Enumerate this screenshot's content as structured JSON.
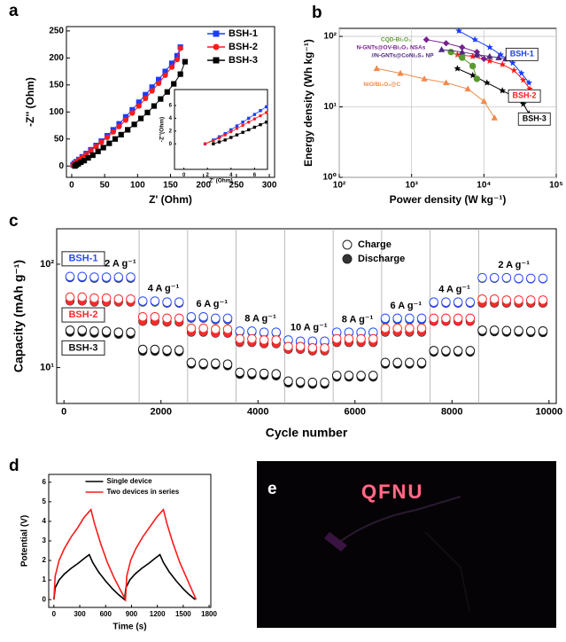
{
  "chart_data": [
    {
      "type": "line",
      "panel": "a",
      "xlabel": "Z' (Ohm)",
      "ylabel": "-Z'' (Ohm)",
      "xlim": [
        -8,
        308
      ],
      "ylim": [
        -21,
        258
      ],
      "xticks": [
        0,
        50,
        100,
        150,
        200,
        250,
        300
      ],
      "yticks": [
        0,
        50,
        100,
        150,
        200,
        250
      ],
      "legend": "upper right",
      "series": [
        {
          "name": "BSH-1",
          "color": "#1a3cff",
          "marker": "square",
          "x": [
            2,
            4,
            7,
            11,
            16,
            22,
            29,
            37,
            45,
            54,
            63,
            72,
            82,
            92,
            102,
            112,
            122,
            132,
            142,
            152,
            160,
            165
          ],
          "values": [
            2,
            5,
            8,
            12,
            17,
            23,
            30,
            38,
            46,
            56,
            67,
            78,
            91,
            104,
            118,
            132,
            146,
            160,
            175,
            190,
            204,
            220
          ]
        },
        {
          "name": "BSH-2",
          "color": "#ff1a1a",
          "marker": "circle",
          "x": [
            2,
            4,
            7,
            11,
            16,
            22,
            29,
            37,
            45,
            54,
            63,
            72,
            82,
            92,
            102,
            112,
            122,
            132,
            142,
            152,
            160,
            165
          ],
          "values": [
            1,
            4,
            7,
            11,
            16,
            21,
            28,
            36,
            44,
            53,
            63,
            73,
            85,
            98,
            111,
            125,
            139,
            153,
            168,
            183,
            197,
            218
          ]
        },
        {
          "name": "BSH-3",
          "color": "#000000",
          "marker": "square",
          "x": [
            5,
            7,
            10,
            14,
            19,
            25,
            32,
            40,
            48,
            57,
            66,
            75,
            85,
            95,
            105,
            115,
            125,
            135,
            145,
            155,
            165,
            172
          ],
          "values": [
            0,
            2,
            4,
            7,
            10,
            15,
            20,
            27,
            34,
            42,
            50,
            58,
            67,
            77,
            88,
            99,
            111,
            124,
            137,
            152,
            170,
            193
          ]
        }
      ],
      "inset": {
        "xlabel": "Z' (Ohm)",
        "ylabel": "-Z''(Ohm)",
        "xlim": [
          -0.8,
          7.1
        ],
        "ylim": [
          -4,
          8.5
        ],
        "xticks": [
          0,
          2,
          4,
          6
        ],
        "yticks": [
          0,
          2,
          4,
          6
        ],
        "series": [
          {
            "color": "#1a3cff",
            "marker": "square",
            "x": [
              1.8,
              2.5,
              3,
              3.5,
              4,
              4.5,
              5,
              5.5,
              6,
              6.5,
              7
            ],
            "values": [
              0,
              0.6,
              1.1,
              1.6,
              2.2,
              2.8,
              3.4,
              4.0,
              4.6,
              5.2,
              5.8
            ]
          },
          {
            "color": "#ff1a1a",
            "marker": "circle",
            "x": [
              1.8,
              2.5,
              3,
              3.5,
              4,
              4.5,
              5,
              5.5,
              6,
              6.5,
              7
            ],
            "values": [
              0,
              0.5,
              0.9,
              1.4,
              1.9,
              2.4,
              2.9,
              3.4,
              3.9,
              4.4,
              4.9
            ]
          },
          {
            "color": "#000000",
            "marker": "square",
            "x": [
              2.5,
              3,
              3.5,
              4,
              4.5,
              5,
              5.5,
              6,
              6.5,
              7
            ],
            "values": [
              0,
              0.3,
              0.6,
              1,
              1.4,
              1.8,
              2.2,
              2.6,
              3.0,
              3.4
            ]
          }
        ]
      }
    },
    {
      "type": "line",
      "panel": "b",
      "xlabel": "Power density (W kg⁻¹)",
      "ylabel": "Energy density (Wh kg⁻¹)",
      "xlog": true,
      "ylog": true,
      "grid": true,
      "xlim": [
        100,
        100000
      ],
      "ylim": [
        1,
        130
      ],
      "xticks": [
        {
          "value": 100,
          "label": "10²"
        },
        {
          "value": 1000,
          "label": "10³"
        },
        {
          "value": 10000,
          "label": "10⁴"
        },
        {
          "value": 100000,
          "label": "10⁵"
        }
      ],
      "yticks": [
        {
          "value": 1,
          "label": "10⁰"
        },
        {
          "value": 10,
          "label": "10¹"
        },
        {
          "value": 100,
          "label": "10²"
        }
      ],
      "series": [
        {
          "name": "BSH-1",
          "color": "#1a3cff",
          "marker": "star",
          "x": [
            4500,
            7500,
            12000,
            17000,
            25000,
            33000,
            42000
          ],
          "values": [
            120,
            90,
            70,
            55,
            42,
            30,
            22
          ]
        },
        {
          "name": "BSH-2",
          "color": "#ff1a1a",
          "marker": "star",
          "x": [
            4300,
            7000,
            12000,
            18000,
            26000,
            35000,
            43000
          ],
          "values": [
            55,
            52,
            45,
            40,
            33,
            24,
            18
          ]
        },
        {
          "name": "BSH-3",
          "color": "#000000",
          "marker": "star",
          "x": [
            4300,
            7000,
            11000,
            18000,
            26000,
            35000,
            42000
          ],
          "values": [
            35,
            28,
            22,
            17,
            14,
            11,
            8
          ]
        },
        {
          "name": "CQD-Bi₂O₃",
          "color": "#5a9a2e",
          "marker": "circle",
          "x": [
            3500,
            5000,
            7000,
            8000
          ],
          "values": [
            60,
            50,
            38,
            25
          ]
        },
        {
          "name": "N-GNTs@OV-Bi₂O₃ NSAs",
          "color": "#7a1f8f",
          "marker": "diamond",
          "x": [
            1600,
            3000,
            5000,
            8000,
            10000
          ],
          "values": [
            90,
            80,
            70,
            60,
            48
          ]
        },
        {
          "name": "//N-GNTs@CoNi₂S₄ NP",
          "color": "#4b2a7f",
          "marker": "triangle",
          "x": [
            2600,
            5000,
            8000,
            12000,
            16000,
            20000
          ],
          "values": [
            65,
            60,
            55,
            52,
            50,
            48
          ]
        },
        {
          "name": "NiO/Bi₂O₃@C",
          "color": "#f08a4b",
          "marker": "triangle",
          "x": [
            330,
            700,
            1500,
            3000,
            6000,
            10000,
            14000
          ],
          "values": [
            35,
            30,
            25,
            22,
            18,
            12,
            7
          ]
        }
      ]
    },
    {
      "type": "scatter",
      "panel": "c",
      "xlabel": "Cycle number",
      "ylabel": "Capacity (mAh g⁻¹)",
      "ylog": true,
      "xlim": [
        -150,
        10150
      ],
      "ylim": [
        4.5,
        220
      ],
      "xticks": [
        0,
        2000,
        4000,
        6000,
        8000,
        10000
      ],
      "yticks": [
        {
          "value": 10,
          "label": "10¹"
        },
        {
          "value": 100,
          "label": "10²"
        }
      ],
      "marker_legend": [
        "Charge",
        "Discharge"
      ],
      "segments": [
        {
          "start": 0,
          "end": 1550,
          "label": "2 A g⁻¹"
        },
        {
          "start": 1550,
          "end": 2550,
          "label": "4 A g⁻¹"
        },
        {
          "start": 2550,
          "end": 3550,
          "label": "6 A g⁻¹"
        },
        {
          "start": 3550,
          "end": 4550,
          "label": "8 A g⁻¹"
        },
        {
          "start": 4550,
          "end": 5550,
          "label": "10 A g⁻¹"
        },
        {
          "start": 5550,
          "end": 6550,
          "label": "8 A g⁻¹"
        },
        {
          "start": 6550,
          "end": 7550,
          "label": "6 A g⁻¹"
        },
        {
          "start": 7550,
          "end": 8550,
          "label": "4 A g⁻¹"
        },
        {
          "start": 8550,
          "end": 10000,
          "label": "2 A g⁻¹"
        }
      ],
      "x": [
        125,
        375,
        625,
        875,
        1125,
        1375,
        1625,
        1875,
        2125,
        2375,
        2625,
        2875,
        3125,
        3375,
        3625,
        3875,
        4125,
        4375,
        4625,
        4875,
        5125,
        5375,
        5625,
        5875,
        6125,
        6375,
        6625,
        6875,
        7125,
        7375,
        7625,
        7875,
        8125,
        8375,
        8625,
        8875,
        9125,
        9375,
        9625,
        9875
      ],
      "series": [
        {
          "name": "BSH-1",
          "color": "#2a4bff",
          "values": [
            76,
            76,
            75,
            75,
            75,
            75,
            44,
            44,
            43,
            43,
            31,
            31,
            30,
            30,
            22.5,
            22.5,
            22,
            22,
            18.5,
            18,
            18,
            18,
            22,
            22,
            22,
            22,
            30,
            30,
            30,
            30,
            43,
            43,
            43,
            43,
            74,
            74,
            74,
            73,
            73,
            73
          ],
          "discharge": [
            74,
            74,
            73,
            73,
            73,
            73,
            43,
            43,
            42,
            42,
            30,
            30,
            29,
            29,
            22,
            22,
            21.5,
            21.5,
            18,
            17.5,
            17.5,
            17.5,
            21.5,
            21.5,
            21.5,
            21.5,
            29,
            29,
            29,
            29,
            42,
            42,
            42,
            42,
            73,
            73,
            73,
            72,
            72,
            72
          ]
        },
        {
          "name": "BSH-2",
          "color": "#ff2a2a",
          "values": [
            48,
            48,
            47,
            47,
            46,
            46,
            31,
            31,
            30,
            30,
            24,
            24,
            23.5,
            23.5,
            19,
            19,
            18.5,
            18.5,
            16,
            16,
            15.5,
            15.5,
            19,
            19,
            19,
            19,
            24,
            24,
            24,
            24,
            30,
            30,
            30,
            30,
            46,
            46,
            45,
            45,
            45,
            45
          ],
          "discharge": [
            44,
            44,
            43,
            43,
            43,
            43,
            28,
            28,
            27.5,
            27.5,
            22,
            22,
            21.5,
            21.5,
            17.5,
            17.5,
            17,
            17,
            15,
            15,
            14.5,
            14.5,
            17.5,
            17.5,
            17.5,
            17.5,
            22,
            22,
            22,
            22,
            28,
            28,
            28,
            28,
            42,
            42,
            42,
            42,
            42,
            42
          ]
        },
        {
          "name": "BSH-3",
          "color": "#111111",
          "values": [
            23,
            23,
            22.5,
            22.5,
            22,
            22,
            15,
            15,
            14.8,
            14.8,
            11.2,
            11,
            11,
            10.8,
            9,
            8.9,
            8.8,
            8.7,
            7.4,
            7.3,
            7.2,
            7.2,
            8.4,
            8.4,
            8.4,
            8.4,
            11.2,
            11.2,
            11.2,
            11.2,
            14.6,
            14.6,
            14.6,
            14.6,
            23,
            23,
            22.8,
            22.8,
            22.6,
            22.6
          ],
          "discharge": [
            22,
            22,
            21.5,
            21.5,
            21,
            21,
            14.4,
            14.4,
            14.2,
            14.2,
            10.8,
            10.6,
            10.6,
            10.4,
            8.6,
            8.5,
            8.4,
            8.3,
            7.1,
            7,
            6.9,
            6.9,
            8.1,
            8.1,
            8.1,
            8.1,
            10.8,
            10.8,
            10.8,
            10.8,
            14.1,
            14.1,
            14.1,
            14.1,
            22.2,
            22.2,
            22,
            22,
            21.8,
            21.8
          ]
        }
      ]
    },
    {
      "type": "line",
      "panel": "d",
      "xlabel": "Time (s)",
      "ylabel": "Potential (V)",
      "xlim": [
        -60,
        1820
      ],
      "ylim": [
        -0.4,
        6.4
      ],
      "xticks": [
        0,
        300,
        600,
        900,
        1200,
        1500,
        1800
      ],
      "yticks": [
        0,
        1,
        2,
        3,
        4,
        5,
        6
      ],
      "legend": "upper center",
      "series": [
        {
          "name": "Single device",
          "color": "#000000",
          "x": [
            0,
            15,
            60,
            120,
            200,
            280,
            350,
            410,
            450,
            520,
            600,
            680,
            750,
            820,
            835,
            880,
            940,
            1020,
            1100,
            1170,
            1230,
            1270,
            1340,
            1420,
            1500,
            1570,
            1640
          ],
          "values": [
            0,
            0.6,
            1.0,
            1.3,
            1.6,
            1.85,
            2.1,
            2.3,
            1.9,
            1.4,
            0.95,
            0.55,
            0.25,
            0,
            0.6,
            1.0,
            1.3,
            1.6,
            1.85,
            2.1,
            2.3,
            1.9,
            1.4,
            0.95,
            0.55,
            0.25,
            0
          ]
        },
        {
          "name": "Two devices in series",
          "color": "#ff1a1a",
          "x": [
            0,
            15,
            60,
            120,
            200,
            280,
            350,
            430,
            470,
            540,
            620,
            700,
            770,
            830,
            845,
            890,
            950,
            1030,
            1110,
            1190,
            1270,
            1310,
            1380,
            1460,
            1540,
            1600,
            1650
          ],
          "values": [
            0,
            1.2,
            2.0,
            2.6,
            3.2,
            3.7,
            4.2,
            4.6,
            3.9,
            2.9,
            1.9,
            1.1,
            0.5,
            0,
            1.2,
            2.0,
            2.6,
            3.2,
            3.7,
            4.2,
            4.6,
            3.9,
            2.9,
            1.9,
            1.1,
            0.5,
            0
          ]
        }
      ]
    },
    {
      "type": "image",
      "panel": "e",
      "text": "QFNU"
    }
  ]
}
